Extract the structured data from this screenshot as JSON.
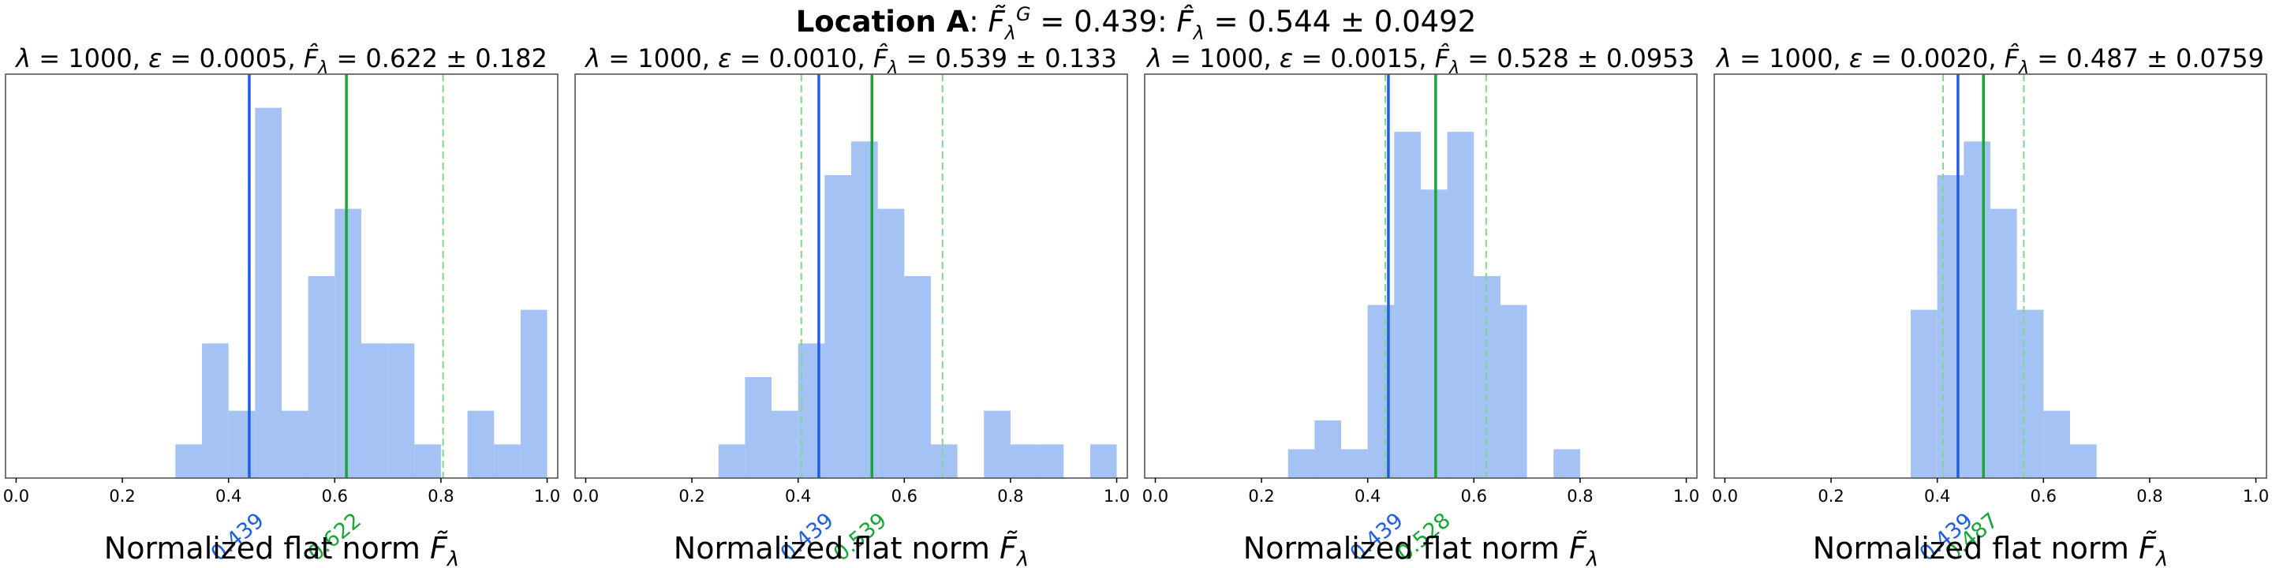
{
  "colors": {
    "hist": "#a4c2f4",
    "ground_line": "#1f5fe0",
    "estimate_line": "#1aa637",
    "ci_line": "#7fd68f",
    "ground_label": "#1f5fe0",
    "estimate_label": "#1aa637",
    "frame": "#555555"
  },
  "figure": {
    "title_bold": "Location A",
    "title_rest": ": F̃ λ G = 0.439: F̂ λ = 0.544 ± 0.0492",
    "title_ground_value": "0.439",
    "title_estimate_value": "0.544 ± 0.0492"
  },
  "chart_data": [
    {
      "type": "bar",
      "title": "λ = 1000, ε = 0.0005, F̂λ = 0.622 ± 0.182",
      "title_parts": {
        "lambda": "1000",
        "epsilon": "0.0005",
        "estimate": "0.622 ± 0.182"
      },
      "xlabel": "Normalized flat norm F̃λ",
      "xlim": [
        -0.02,
        1.02
      ],
      "ylim": [
        0,
        12
      ],
      "xticks": [
        "0.0",
        "0.2",
        "0.4",
        "0.6",
        "0.8",
        "1.0"
      ],
      "bin_width": 0.05,
      "bins": [
        {
          "x0": 0.3,
          "count": 1
        },
        {
          "x0": 0.35,
          "count": 4
        },
        {
          "x0": 0.4,
          "count": 2
        },
        {
          "x0": 0.45,
          "count": 11
        },
        {
          "x0": 0.5,
          "count": 2
        },
        {
          "x0": 0.55,
          "count": 6
        },
        {
          "x0": 0.6,
          "count": 8
        },
        {
          "x0": 0.65,
          "count": 4
        },
        {
          "x0": 0.7,
          "count": 4
        },
        {
          "x0": 0.75,
          "count": 1
        },
        {
          "x0": 0.85,
          "count": 2
        },
        {
          "x0": 0.9,
          "count": 1
        },
        {
          "x0": 0.95,
          "count": 5
        }
      ],
      "ground_truth": 0.439,
      "ground_label": "0.439",
      "estimate": 0.622,
      "estimate_label": "0.622",
      "ci": [
        0.44,
        0.804
      ]
    },
    {
      "type": "bar",
      "title": "λ = 1000, ε = 0.0010, F̂λ = 0.539 ± 0.133",
      "title_parts": {
        "lambda": "1000",
        "epsilon": "0.0010",
        "estimate": "0.539 ± 0.133"
      },
      "xlabel": "Normalized flat norm F̃λ",
      "xlim": [
        -0.02,
        1.02
      ],
      "ylim": [
        0,
        12
      ],
      "xticks": [
        "0.0",
        "0.2",
        "0.4",
        "0.6",
        "0.8",
        "1.0"
      ],
      "bin_width": 0.05,
      "bins": [
        {
          "x0": 0.25,
          "count": 1
        },
        {
          "x0": 0.3,
          "count": 3
        },
        {
          "x0": 0.35,
          "count": 2
        },
        {
          "x0": 0.4,
          "count": 4
        },
        {
          "x0": 0.45,
          "count": 9
        },
        {
          "x0": 0.5,
          "count": 10
        },
        {
          "x0": 0.55,
          "count": 8
        },
        {
          "x0": 0.6,
          "count": 6
        },
        {
          "x0": 0.65,
          "count": 1
        },
        {
          "x0": 0.75,
          "count": 2
        },
        {
          "x0": 0.8,
          "count": 1
        },
        {
          "x0": 0.85,
          "count": 1
        },
        {
          "x0": 0.95,
          "count": 1
        }
      ],
      "ground_truth": 0.439,
      "ground_label": "0.439",
      "estimate": 0.539,
      "estimate_label": "0.539",
      "ci": [
        0.406,
        0.672
      ]
    },
    {
      "type": "bar",
      "title": "λ = 1000, ε = 0.0015, F̂λ = 0.528 ± 0.0953",
      "title_parts": {
        "lambda": "1000",
        "epsilon": "0.0015",
        "estimate": "0.528 ± 0.0953"
      },
      "xlabel": "Normalized flat norm F̃λ",
      "xlim": [
        -0.02,
        1.02
      ],
      "ylim": [
        0,
        14
      ],
      "xticks": [
        "0.0",
        "0.2",
        "0.4",
        "0.6",
        "0.8",
        "1.0"
      ],
      "bin_width": 0.05,
      "bins": [
        {
          "x0": 0.25,
          "count": 1
        },
        {
          "x0": 0.3,
          "count": 2
        },
        {
          "x0": 0.35,
          "count": 1
        },
        {
          "x0": 0.4,
          "count": 6
        },
        {
          "x0": 0.45,
          "count": 12
        },
        {
          "x0": 0.5,
          "count": 10
        },
        {
          "x0": 0.55,
          "count": 12
        },
        {
          "x0": 0.6,
          "count": 7
        },
        {
          "x0": 0.65,
          "count": 6
        },
        {
          "x0": 0.75,
          "count": 1
        }
      ],
      "ground_truth": 0.439,
      "ground_label": "0.439",
      "estimate": 0.528,
      "estimate_label": "0.528",
      "ci": [
        0.433,
        0.623
      ]
    },
    {
      "type": "bar",
      "title": "λ = 1000, ε = 0.0020, F̂λ = 0.487 ± 0.0759",
      "title_parts": {
        "lambda": "1000",
        "epsilon": "0.0020",
        "estimate": "0.487 ± 0.0759"
      },
      "xlabel": "Normalized flat norm F̃λ",
      "xlim": [
        -0.02,
        1.02
      ],
      "ylim": [
        0,
        12
      ],
      "xticks": [
        "0.0",
        "0.2",
        "0.4",
        "0.6",
        "0.8",
        "1.0"
      ],
      "bin_width": 0.05,
      "bins": [
        {
          "x0": 0.35,
          "count": 5
        },
        {
          "x0": 0.4,
          "count": 9
        },
        {
          "x0": 0.45,
          "count": 10
        },
        {
          "x0": 0.5,
          "count": 8
        },
        {
          "x0": 0.55,
          "count": 5
        },
        {
          "x0": 0.6,
          "count": 2
        },
        {
          "x0": 0.65,
          "count": 1
        }
      ],
      "ground_truth": 0.439,
      "ground_label": "0.439",
      "estimate": 0.487,
      "estimate_label": "0.487",
      "ci": [
        0.411,
        0.563
      ]
    }
  ]
}
